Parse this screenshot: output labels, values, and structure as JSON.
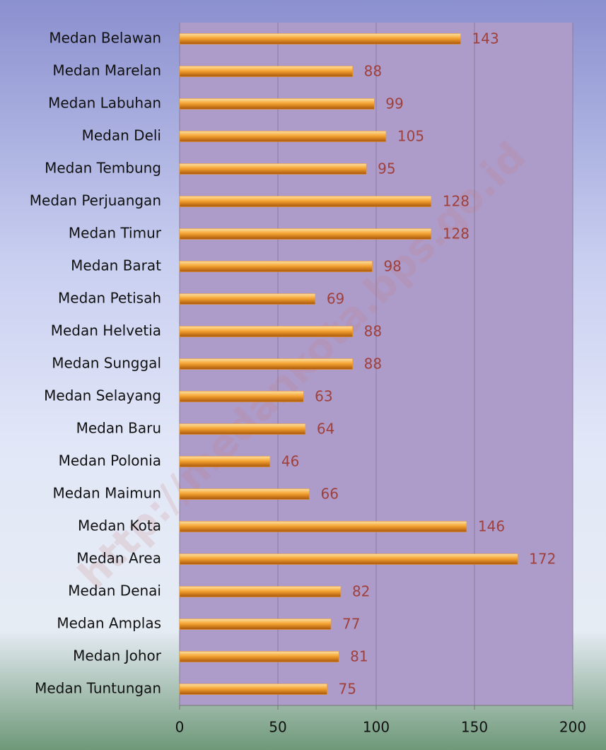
{
  "chart_data": {
    "type": "barh",
    "categories": [
      "Medan Belawan",
      "Medan Marelan",
      "Medan Labuhan",
      "Medan Deli",
      "Medan Tembung",
      "Medan Perjuangan",
      "Medan Timur",
      "Medan Barat",
      "Medan Petisah",
      "Medan Helvetia",
      "Medan Sunggal",
      "Medan Selayang",
      "Medan Baru",
      "Medan Polonia",
      "Medan Maimun",
      "Medan Kota",
      "Medan Area",
      "Medan Denai",
      "Medan Amplas",
      "Medan Johor",
      "Medan Tuntungan"
    ],
    "values": [
      143,
      88,
      99,
      105,
      95,
      128,
      128,
      98,
      69,
      88,
      88,
      63,
      64,
      46,
      66,
      146,
      172,
      82,
      77,
      81,
      75
    ],
    "color": "#f39a1e",
    "xlim": [
      0,
      200
    ],
    "xticks": [
      0,
      50,
      100,
      150,
      200
    ],
    "grid": true,
    "watermark": "http://medankota.bps.go.id"
  }
}
